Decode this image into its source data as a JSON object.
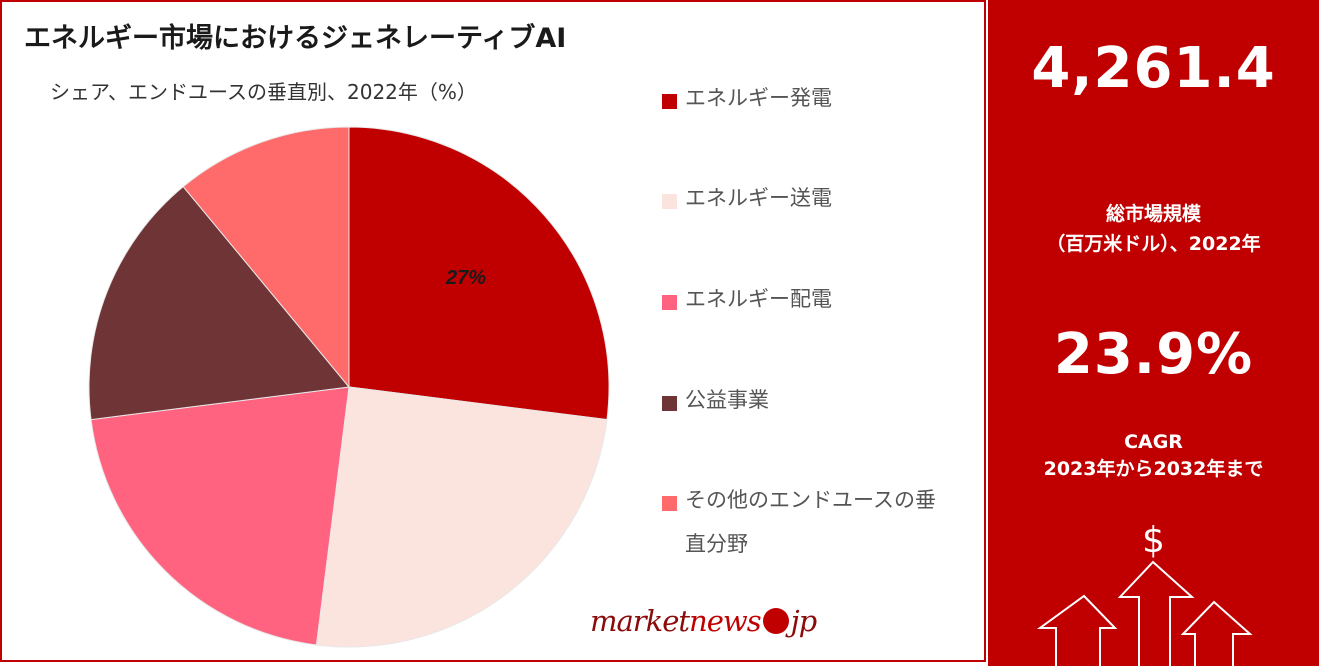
{
  "title": "エネルギー市場におけるジェネレーティブAI",
  "subtitle": "シェア、エンドユースの垂直別、2022年（%）",
  "chart_data": {
    "type": "pie",
    "title": "エネルギー市場におけるジェネレーティブAI",
    "subtitle": "シェア、エンドユースの垂直別、2022年（%）",
    "slices": [
      {
        "label": "エネルギー発電",
        "value": 27,
        "color": "#c00000",
        "data_label": "27%"
      },
      {
        "label": "エネルギー送電",
        "value": 25,
        "color": "#fce4de",
        "data_label": ""
      },
      {
        "label": "エネルギー配電",
        "value": 21,
        "color": "#ff6380",
        "data_label": ""
      },
      {
        "label": "公益事業",
        "value": 16,
        "color": "#6e3436",
        "data_label": ""
      },
      {
        "label": "その他のエンドユースの垂直分野",
        "value": 11,
        "color": "#ff6a6a",
        "data_label": ""
      }
    ],
    "legend_position": "right"
  },
  "legend": [
    {
      "label": "エネルギー発電",
      "color": "#c00000"
    },
    {
      "label": "エネルギー送電",
      "color": "#fce4de"
    },
    {
      "label": "エネルギー配電",
      "color": "#ff6380"
    },
    {
      "label": "公益事業",
      "color": "#6e3436"
    },
    {
      "label": "その他のエンドユースの垂直分野",
      "color": "#ff6a6a"
    }
  ],
  "stats": {
    "market_size_value": "4,261.4",
    "market_size_label_line1": "総市場規模",
    "market_size_label_line2": "（百万米ドル）、2022年",
    "cagr_value": "23.9%",
    "cagr_label_line1": "CAGR",
    "cagr_label_line2": "2023年から2032年まで",
    "currency_symbol": "$"
  },
  "logo": {
    "part1": "market",
    "part2": "news",
    "part3": "jp"
  },
  "colors": {
    "accent": "#c00000",
    "background": "#ffffff"
  }
}
